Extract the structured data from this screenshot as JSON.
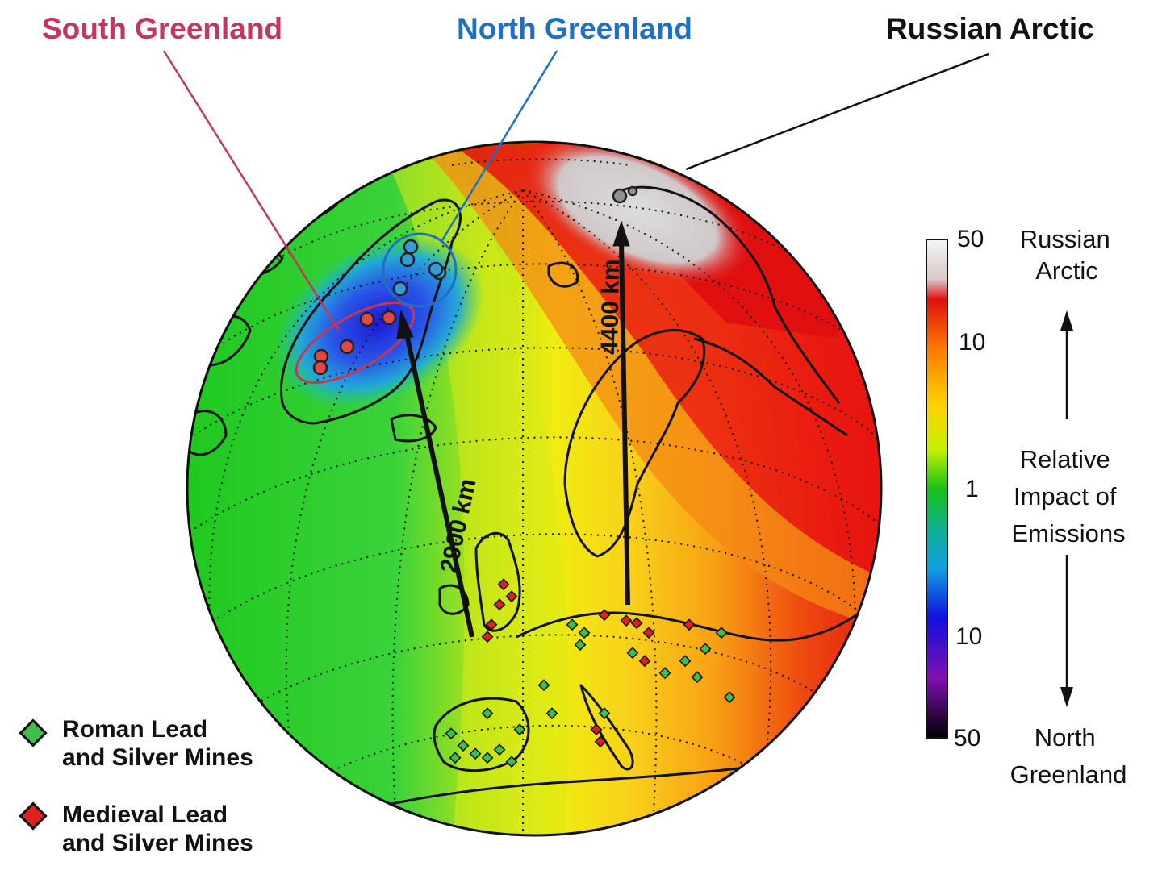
{
  "regions": {
    "south_greenland": {
      "label": "South Greenland",
      "color": "#c2375b"
    },
    "north_greenland": {
      "label": "North Greenland",
      "color": "#1f6fc4"
    },
    "russian_arctic": {
      "label": "Russian Arctic",
      "color": "#111111"
    }
  },
  "distances": {
    "greenland": "2900 km",
    "russia": "4400 km"
  },
  "colorbar": {
    "ticks": {
      "top": "50",
      "upper_mid": "10",
      "center": "1",
      "lower_mid": "10",
      "bottom": "50"
    },
    "label_top_line1": "Russian",
    "label_top_line2": "Arctic",
    "label_center_line1": "Relative",
    "label_center_line2": "Impact of",
    "label_center_line3": "Emissions",
    "label_bottom_line1": "North",
    "label_bottom_line2": "Greenland"
  },
  "legend": {
    "roman_line1": "Roman Lead",
    "roman_line2": "and Silver Mines",
    "roman_color": "#3fbf4f",
    "medieval_line1": "Medieval Lead",
    "medieval_line2": "and Silver Mines",
    "medieval_color": "#e02020"
  }
}
